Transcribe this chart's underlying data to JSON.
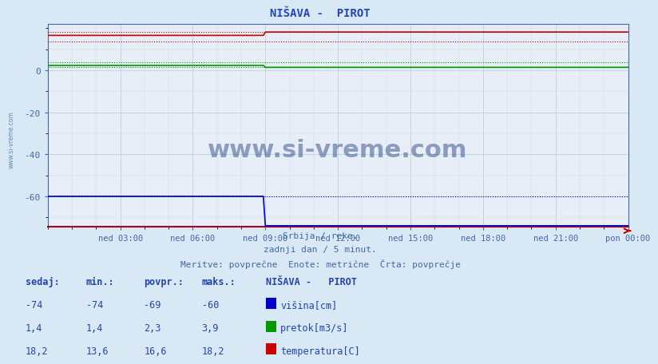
{
  "title": "NIŠAVA -  PIROT",
  "bg_color": "#d8e8f4",
  "plot_bg_color": "#e8eef8",
  "grid_color_major": "#b8c8d8",
  "grid_color_minor": "#ccd8e8",
  "xlabel_color": "#4466aa",
  "ylabel_color": "#4466aa",
  "title_color": "#2244bb",
  "watermark_text": "www.si-vreme.com",
  "watermark_color": "#1a3a7a",
  "subtitle1": "Srbija / reke.",
  "subtitle2": "zadnji dan / 5 minut.",
  "subtitle3": "Meritve: povprečne  Enote: metrične  Črta: povprečje",
  "xtick_labels": [
    "ned 03:00",
    "ned 06:00",
    "ned 09:00",
    "ned 12:00",
    "ned 15:00",
    "ned 18:00",
    "ned 21:00",
    "pon 00:00"
  ],
  "xtick_positions": [
    36,
    72,
    108,
    144,
    180,
    216,
    252,
    288
  ],
  "ylim_bottom": -74.5,
  "ylim_top": 22.0,
  "ytick_positions": [
    0,
    -20,
    -40,
    -60
  ],
  "n_points": 289,
  "step_index": 108,
  "visina_before": -60.0,
  "visina_after": -74.0,
  "visina_min": -74.0,
  "visina_max": -60.0,
  "pretok_before": 2.3,
  "pretok_after": 1.4,
  "pretok_min": 1.4,
  "pretok_max": 3.9,
  "temp_before": 16.6,
  "temp_after": 18.2,
  "temp_min": 13.6,
  "temp_max": 18.2,
  "color_visina": "#0000cc",
  "color_pretok": "#009900",
  "color_temp": "#cc0000",
  "table_header": "NIŠAVA -   PIROT",
  "col_sedaj": "sedaj:",
  "col_min": "min.:",
  "col_povpr": "povpr.:",
  "col_maks": "maks.:",
  "label_visina": "višina[cm]",
  "label_pretok": "pretok[m3/s]",
  "label_temp": "temperatura[C]",
  "table_rows": [
    [
      "-74",
      "-74",
      "-69",
      "-60"
    ],
    [
      "1,4",
      "1,4",
      "2,3",
      "3,9"
    ],
    [
      "18,2",
      "13,6",
      "16,6",
      "18,2"
    ]
  ],
  "spine_bottom_color": "#cc0000",
  "spine_other_color": "#4466aa",
  "left_watermark": "www.si-vreme.com"
}
